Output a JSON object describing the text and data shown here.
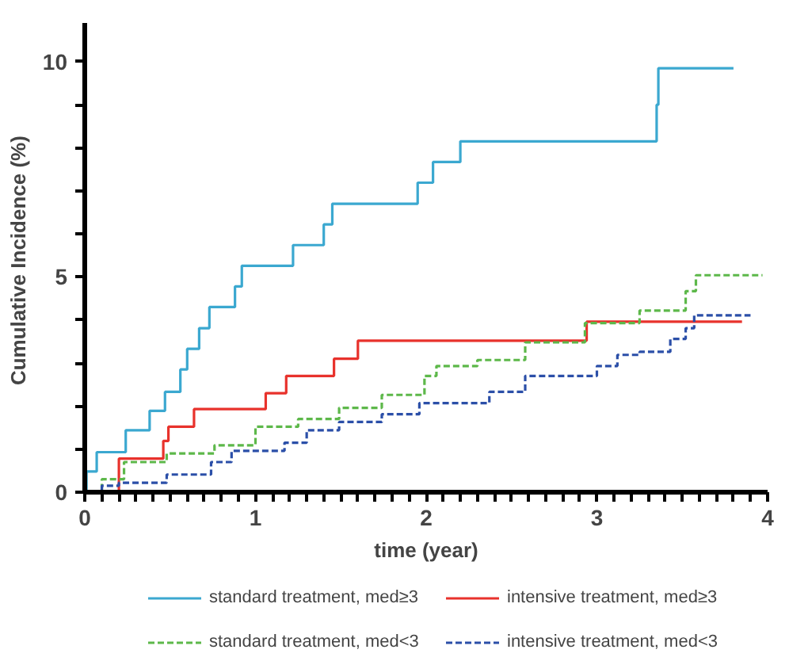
{
  "chart_data": {
    "type": "step",
    "xlabel": "time (year)",
    "ylabel": "Cumulative Incidence  (%)",
    "xlim": [
      0,
      4
    ],
    "ylim": [
      0,
      10.9
    ],
    "xticks": [
      0,
      {
        "value": 0.1,
        "label": null
      },
      {
        "value": 0.2,
        "label": null
      },
      {
        "value": 0.3,
        "label": null
      },
      {
        "value": 0.4,
        "label": null
      },
      {
        "value": 0.5,
        "label": null
      },
      {
        "value": 0.6,
        "label": null
      },
      {
        "value": 0.7,
        "label": null
      },
      {
        "value": 0.8,
        "label": null
      },
      {
        "value": 0.9,
        "label": null
      },
      1,
      {
        "value": 1.1,
        "label": null
      },
      {
        "value": 1.2,
        "label": null
      },
      {
        "value": 1.3,
        "label": null
      },
      {
        "value": 1.4,
        "label": null
      },
      {
        "value": 1.5,
        "label": null
      },
      {
        "value": 1.6,
        "label": null
      },
      {
        "value": 1.7,
        "label": null
      },
      {
        "value": 1.8,
        "label": null
      },
      {
        "value": 1.9,
        "label": null
      },
      2,
      {
        "value": 2.1,
        "label": null
      },
      {
        "value": 2.2,
        "label": null
      },
      {
        "value": 2.3,
        "label": null
      },
      {
        "value": 2.4,
        "label": null
      },
      {
        "value": 2.5,
        "label": null
      },
      {
        "value": 2.6,
        "label": null
      },
      {
        "value": 2.7,
        "label": null
      },
      {
        "value": 2.8,
        "label": null
      },
      {
        "value": 2.9,
        "label": null
      },
      3,
      {
        "value": 3.1,
        "label": null
      },
      {
        "value": 3.2,
        "label": null
      },
      {
        "value": 3.3,
        "label": null
      },
      {
        "value": 3.4,
        "label": null
      },
      {
        "value": 3.5,
        "label": null
      },
      {
        "value": 3.6,
        "label": null
      },
      {
        "value": 3.7,
        "label": null
      },
      {
        "value": 3.8,
        "label": null
      },
      {
        "value": 3.9,
        "label": null
      },
      4
    ],
    "yticks": [
      0,
      {
        "value": 1,
        "label": null
      },
      {
        "value": 2,
        "label": null
      },
      {
        "value": 3,
        "label": null
      },
      {
        "value": 4,
        "label": null
      },
      5,
      {
        "value": 6,
        "label": null
      },
      {
        "value": 7,
        "label": null
      },
      {
        "value": 8,
        "label": null
      },
      {
        "value": 9,
        "label": null
      },
      10
    ],
    "grid": false,
    "legend": "bottom",
    "marker": "none",
    "series": [
      {
        "name": "standard treatment, med≥3",
        "color": "#3ba8d0",
        "line_style": "solid",
        "x": [
          0,
          0.01,
          0.07,
          0.24,
          0.38,
          0.47,
          0.56,
          0.6,
          0.67,
          0.73,
          0.88,
          0.92,
          1.22,
          1.4,
          1.45,
          1.95,
          2.04,
          2.2,
          3.35,
          3.36,
          3.8
        ],
        "values": [
          0,
          0.48,
          0.93,
          1.44,
          1.89,
          2.33,
          2.85,
          3.33,
          3.81,
          4.3,
          4.78,
          5.26,
          5.74,
          6.22,
          6.7,
          7.19,
          7.67,
          8.15,
          9.0,
          9.85,
          9.85
        ]
      },
      {
        "name": "intensive treatment, med≥3",
        "color": "#e8322c",
        "line_style": "solid",
        "x": [
          0,
          0.2,
          0.46,
          0.49,
          0.64,
          1.06,
          1.18,
          1.46,
          1.6,
          2.94,
          3.85
        ],
        "values": [
          0,
          0.78,
          1.19,
          1.52,
          1.93,
          2.3,
          2.7,
          3.1,
          3.52,
          3.96,
          3.96
        ]
      },
      {
        "name": "standard treatment, med<3",
        "color": "#5db84a",
        "line_style": "dashed",
        "x": [
          0,
          0.1,
          0.23,
          0.48,
          0.76,
          1.0,
          1.25,
          1.49,
          1.74,
          1.99,
          2.06,
          2.3,
          2.58,
          2.93,
          3.25,
          3.52,
          3.58,
          3.97
        ],
        "values": [
          0,
          0.3,
          0.7,
          0.9,
          1.09,
          1.52,
          1.7,
          1.96,
          2.26,
          2.7,
          2.93,
          3.07,
          3.48,
          3.93,
          4.22,
          4.67,
          5.04,
          5.04
        ]
      },
      {
        "name": "intensive treatment, med<3",
        "color": "#2b4fa8",
        "line_style": "dashed",
        "x": [
          0,
          0.1,
          0.2,
          0.48,
          0.74,
          0.86,
          1.17,
          1.3,
          1.49,
          1.74,
          1.96,
          2.37,
          2.58,
          3.0,
          3.12,
          3.25,
          3.43,
          3.52,
          3.57,
          3.9
        ],
        "values": [
          0,
          0.15,
          0.22,
          0.41,
          0.7,
          0.96,
          1.15,
          1.44,
          1.63,
          1.81,
          2.07,
          2.33,
          2.7,
          2.93,
          3.19,
          3.26,
          3.56,
          3.81,
          4.11,
          4.11
        ]
      }
    ]
  }
}
